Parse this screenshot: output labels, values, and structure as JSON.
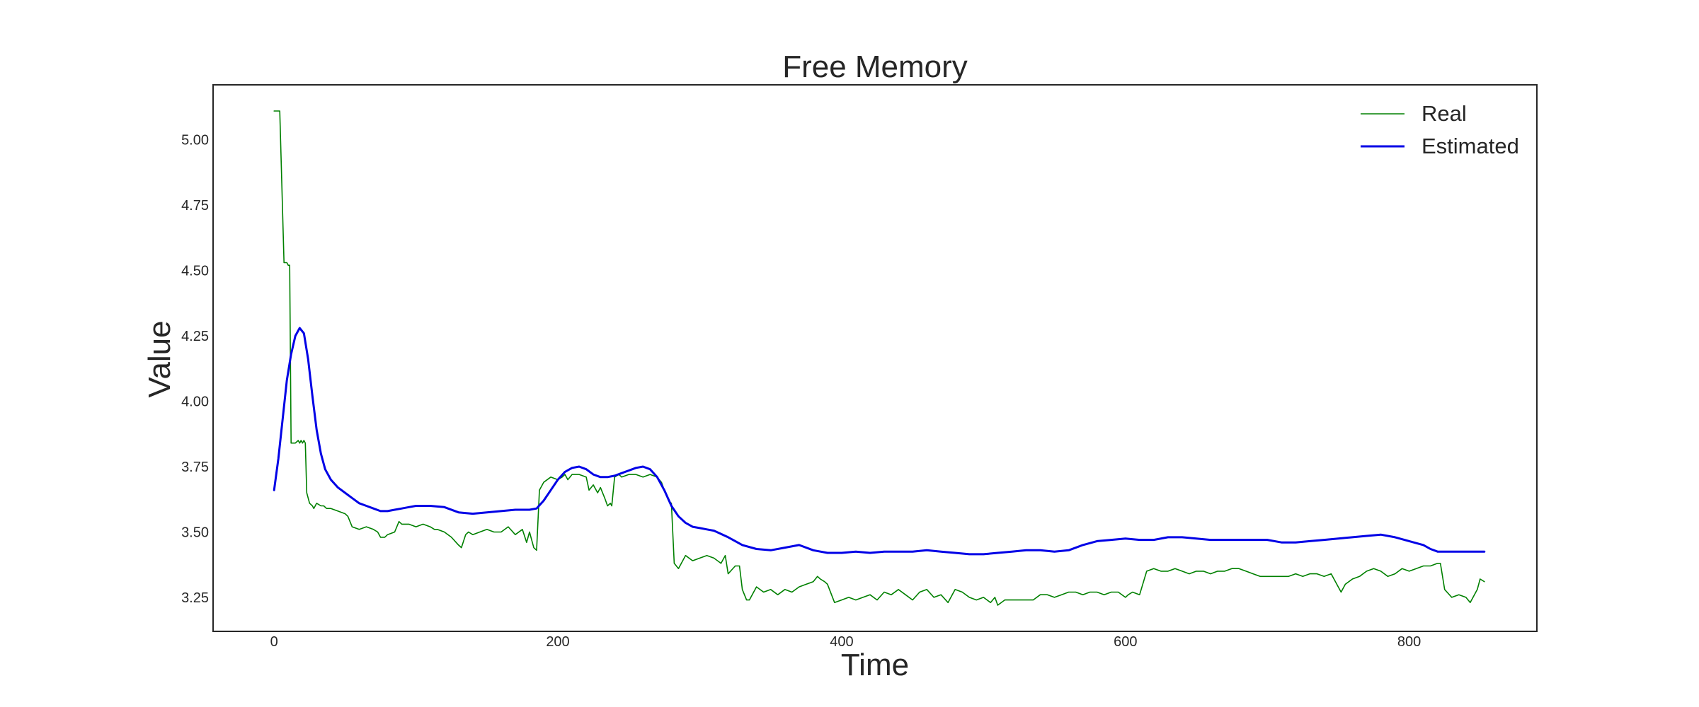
{
  "chart_data": {
    "type": "line",
    "title": "Free Memory",
    "xlabel": "Time",
    "ylabel": "Value",
    "xlim": [
      -43,
      890
    ],
    "ylim": [
      3.12,
      5.21
    ],
    "xticks": [
      0,
      200,
      400,
      600,
      800
    ],
    "yticks": [
      3.25,
      3.5,
      3.75,
      4.0,
      4.25,
      4.5,
      4.75,
      5.0
    ],
    "grid": false,
    "legend": {
      "placement": "top-right"
    },
    "series": [
      {
        "name": "Real",
        "color": "#008000",
        "x": [
          0,
          3,
          4,
          7,
          8,
          9,
          10,
          11,
          12,
          13,
          14,
          15,
          17,
          18,
          19,
          20,
          21,
          22,
          23,
          24,
          25,
          27,
          28,
          30,
          33,
          35,
          37,
          40,
          45,
          50,
          52,
          55,
          60,
          65,
          70,
          73,
          75,
          78,
          80,
          85,
          88,
          90,
          95,
          100,
          105,
          110,
          113,
          115,
          120,
          125,
          130,
          132,
          135,
          137,
          140,
          145,
          150,
          155,
          160,
          165,
          170,
          175,
          178,
          180,
          183,
          185,
          187,
          190,
          195,
          200,
          203,
          205,
          207,
          210,
          215,
          220,
          222,
          225,
          228,
          230,
          233,
          235,
          237,
          238,
          240,
          243,
          245,
          250,
          255,
          260,
          265,
          270,
          273,
          275,
          278,
          280,
          282,
          285,
          290,
          295,
          300,
          305,
          310,
          315,
          318,
          320,
          325,
          328,
          330,
          333,
          335,
          340,
          345,
          350,
          355,
          360,
          365,
          370,
          375,
          380,
          383,
          385,
          388,
          390,
          395,
          400,
          405,
          410,
          415,
          420,
          425,
          430,
          435,
          440,
          445,
          450,
          455,
          460,
          465,
          470,
          475,
          480,
          485,
          490,
          495,
          500,
          505,
          508,
          510,
          515,
          520,
          525,
          530,
          535,
          540,
          545,
          550,
          555,
          560,
          565,
          570,
          575,
          580,
          585,
          590,
          595,
          600,
          602,
          605,
          610,
          615,
          620,
          625,
          630,
          635,
          640,
          645,
          650,
          655,
          660,
          665,
          670,
          675,
          680,
          685,
          690,
          695,
          700,
          705,
          710,
          715,
          720,
          725,
          730,
          735,
          740,
          745,
          750,
          752,
          755,
          760,
          765,
          770,
          775,
          780,
          785,
          790,
          795,
          800,
          805,
          810,
          815,
          820,
          822,
          825,
          830,
          835,
          840,
          843,
          845,
          848,
          850,
          853
        ],
        "values": [
          5.11,
          5.11,
          5.11,
          4.53,
          4.53,
          4.53,
          4.52,
          4.52,
          3.84,
          3.84,
          3.84,
          3.84,
          3.85,
          3.84,
          3.85,
          3.84,
          3.85,
          3.84,
          3.65,
          3.63,
          3.61,
          3.6,
          3.59,
          3.61,
          3.6,
          3.6,
          3.59,
          3.59,
          3.58,
          3.57,
          3.56,
          3.52,
          3.51,
          3.52,
          3.51,
          3.5,
          3.48,
          3.48,
          3.49,
          3.5,
          3.54,
          3.53,
          3.53,
          3.52,
          3.53,
          3.52,
          3.51,
          3.51,
          3.5,
          3.48,
          3.45,
          3.44,
          3.49,
          3.5,
          3.49,
          3.5,
          3.51,
          3.5,
          3.5,
          3.52,
          3.49,
          3.51,
          3.46,
          3.5,
          3.44,
          3.43,
          3.66,
          3.69,
          3.71,
          3.7,
          3.71,
          3.72,
          3.7,
          3.72,
          3.72,
          3.71,
          3.66,
          3.68,
          3.65,
          3.67,
          3.63,
          3.6,
          3.61,
          3.6,
          3.71,
          3.72,
          3.71,
          3.72,
          3.72,
          3.71,
          3.72,
          3.71,
          3.69,
          3.66,
          3.62,
          3.61,
          3.38,
          3.36,
          3.41,
          3.39,
          3.4,
          3.41,
          3.4,
          3.38,
          3.41,
          3.34,
          3.37,
          3.37,
          3.28,
          3.24,
          3.24,
          3.29,
          3.27,
          3.28,
          3.26,
          3.28,
          3.27,
          3.29,
          3.3,
          3.31,
          3.33,
          3.32,
          3.31,
          3.3,
          3.23,
          3.24,
          3.25,
          3.24,
          3.25,
          3.26,
          3.24,
          3.27,
          3.26,
          3.28,
          3.26,
          3.24,
          3.27,
          3.28,
          3.25,
          3.26,
          3.23,
          3.28,
          3.27,
          3.25,
          3.24,
          3.25,
          3.23,
          3.25,
          3.22,
          3.24,
          3.24,
          3.24,
          3.24,
          3.24,
          3.26,
          3.26,
          3.25,
          3.26,
          3.27,
          3.27,
          3.26,
          3.27,
          3.27,
          3.26,
          3.27,
          3.27,
          3.25,
          3.26,
          3.27,
          3.26,
          3.35,
          3.36,
          3.35,
          3.35,
          3.36,
          3.35,
          3.34,
          3.35,
          3.35,
          3.34,
          3.35,
          3.35,
          3.36,
          3.36,
          3.35,
          3.34,
          3.33,
          3.33,
          3.33,
          3.33,
          3.33,
          3.34,
          3.33,
          3.34,
          3.34,
          3.33,
          3.34,
          3.29,
          3.27,
          3.3,
          3.32,
          3.33,
          3.35,
          3.36,
          3.35,
          3.33,
          3.34,
          3.36,
          3.35,
          3.36,
          3.37,
          3.37,
          3.38,
          3.38,
          3.28,
          3.25,
          3.26,
          3.25,
          3.23,
          3.25,
          3.28,
          3.32,
          3.31
        ]
      },
      {
        "name": "Estimated",
        "color": "#0000e6",
        "x": [
          0,
          3,
          6,
          9,
          12,
          15,
          18,
          21,
          24,
          27,
          30,
          33,
          36,
          40,
          45,
          50,
          55,
          60,
          65,
          70,
          75,
          80,
          85,
          90,
          95,
          100,
          110,
          120,
          130,
          140,
          150,
          160,
          170,
          180,
          185,
          190,
          195,
          200,
          205,
          210,
          215,
          220,
          225,
          230,
          235,
          240,
          245,
          250,
          255,
          260,
          265,
          270,
          275,
          280,
          285,
          290,
          295,
          300,
          305,
          310,
          320,
          330,
          340,
          350,
          360,
          370,
          380,
          390,
          400,
          410,
          420,
          430,
          440,
          450,
          460,
          470,
          480,
          490,
          500,
          510,
          520,
          530,
          540,
          550,
          560,
          570,
          580,
          590,
          600,
          610,
          620,
          630,
          640,
          650,
          660,
          670,
          680,
          690,
          700,
          710,
          720,
          730,
          740,
          750,
          760,
          770,
          780,
          790,
          800,
          810,
          815,
          820,
          825,
          830,
          835,
          840,
          845,
          850,
          853
        ],
        "values": [
          3.66,
          3.78,
          3.93,
          4.08,
          4.18,
          4.25,
          4.28,
          4.26,
          4.16,
          4.02,
          3.89,
          3.8,
          3.74,
          3.7,
          3.67,
          3.65,
          3.63,
          3.61,
          3.6,
          3.59,
          3.58,
          3.58,
          3.585,
          3.59,
          3.595,
          3.6,
          3.6,
          3.595,
          3.575,
          3.57,
          3.575,
          3.58,
          3.585,
          3.585,
          3.59,
          3.62,
          3.66,
          3.7,
          3.73,
          3.745,
          3.75,
          3.74,
          3.72,
          3.71,
          3.71,
          3.715,
          3.725,
          3.735,
          3.745,
          3.75,
          3.74,
          3.71,
          3.66,
          3.6,
          3.56,
          3.535,
          3.52,
          3.515,
          3.51,
          3.505,
          3.48,
          3.45,
          3.435,
          3.43,
          3.44,
          3.45,
          3.43,
          3.42,
          3.42,
          3.425,
          3.42,
          3.425,
          3.425,
          3.425,
          3.43,
          3.425,
          3.42,
          3.415,
          3.415,
          3.42,
          3.425,
          3.43,
          3.43,
          3.425,
          3.43,
          3.45,
          3.465,
          3.47,
          3.475,
          3.47,
          3.47,
          3.48,
          3.48,
          3.475,
          3.47,
          3.47,
          3.47,
          3.47,
          3.47,
          3.46,
          3.46,
          3.465,
          3.47,
          3.475,
          3.48,
          3.485,
          3.49,
          3.48,
          3.465,
          3.45,
          3.435,
          3.425,
          3.425,
          3.425,
          3.425,
          3.425,
          3.425,
          3.425,
          3.425
        ]
      }
    ]
  }
}
